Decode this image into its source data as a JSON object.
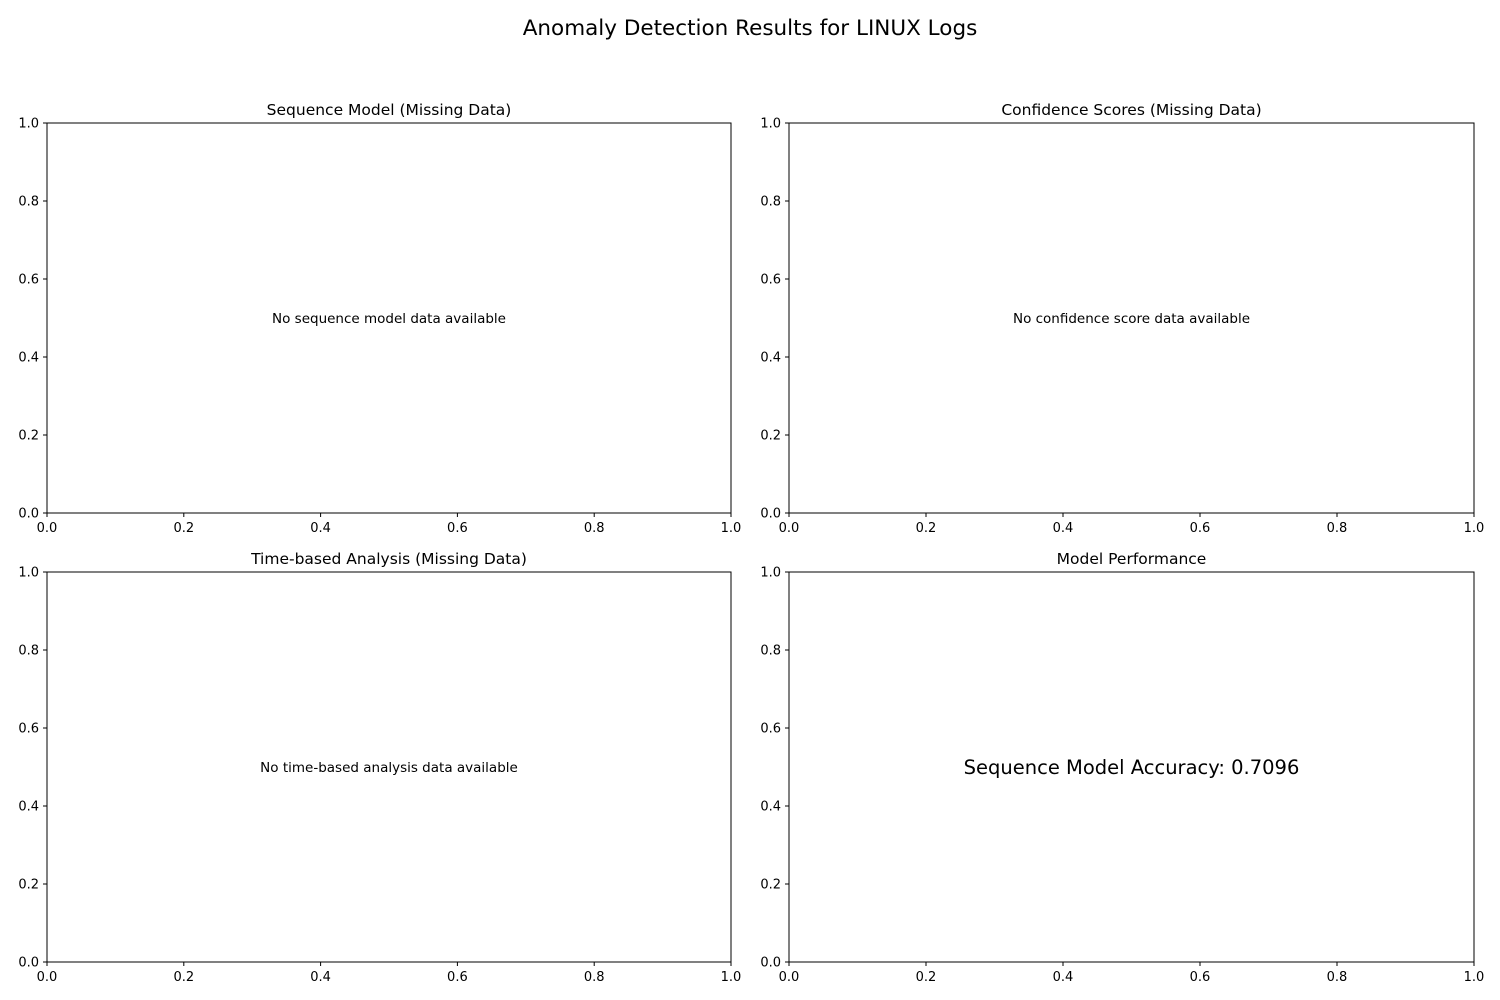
{
  "figure": {
    "title": "Anomaly Detection Results for LINUX Logs"
  },
  "chart_data": [
    {
      "type": "scatter",
      "title": "Sequence Model (Missing Data)",
      "xlabel": "",
      "ylabel": "",
      "xlim": [
        0,
        1
      ],
      "ylim": [
        0,
        1
      ],
      "x_ticks": [
        "0.0",
        "0.2",
        "0.4",
        "0.6",
        "0.8",
        "1.0"
      ],
      "y_ticks": [
        "0.0",
        "0.2",
        "0.4",
        "0.6",
        "0.8",
        "1.0"
      ],
      "series": [],
      "annotation": {
        "text": "No sequence model data available",
        "x": 0.5,
        "y": 0.5
      },
      "grid": false
    },
    {
      "type": "scatter",
      "title": "Confidence Scores (Missing Data)",
      "xlabel": "",
      "ylabel": "",
      "xlim": [
        0,
        1
      ],
      "ylim": [
        0,
        1
      ],
      "x_ticks": [
        "0.0",
        "0.2",
        "0.4",
        "0.6",
        "0.8",
        "1.0"
      ],
      "y_ticks": [
        "0.0",
        "0.2",
        "0.4",
        "0.6",
        "0.8",
        "1.0"
      ],
      "series": [],
      "annotation": {
        "text": "No confidence score data available",
        "x": 0.5,
        "y": 0.5
      },
      "grid": false
    },
    {
      "type": "scatter",
      "title": "Time-based Analysis (Missing Data)",
      "xlabel": "",
      "ylabel": "",
      "xlim": [
        0,
        1
      ],
      "ylim": [
        0,
        1
      ],
      "x_ticks": [
        "0.0",
        "0.2",
        "0.4",
        "0.6",
        "0.8",
        "1.0"
      ],
      "y_ticks": [
        "0.0",
        "0.2",
        "0.4",
        "0.6",
        "0.8",
        "1.0"
      ],
      "series": [],
      "annotation": {
        "text": "No time-based analysis data available",
        "x": 0.5,
        "y": 0.5
      },
      "grid": false
    },
    {
      "type": "scatter",
      "title": "Model Performance",
      "xlabel": "",
      "ylabel": "",
      "xlim": [
        0,
        1
      ],
      "ylim": [
        0,
        1
      ],
      "x_ticks": [
        "0.0",
        "0.2",
        "0.4",
        "0.6",
        "0.8",
        "1.0"
      ],
      "y_ticks": [
        "0.0",
        "0.2",
        "0.4",
        "0.6",
        "0.8",
        "1.0"
      ],
      "series": [],
      "annotation": {
        "text": "Sequence Model Accuracy: 0.7096",
        "x": 0.5,
        "y": 0.5,
        "large": true
      },
      "grid": false
    }
  ]
}
